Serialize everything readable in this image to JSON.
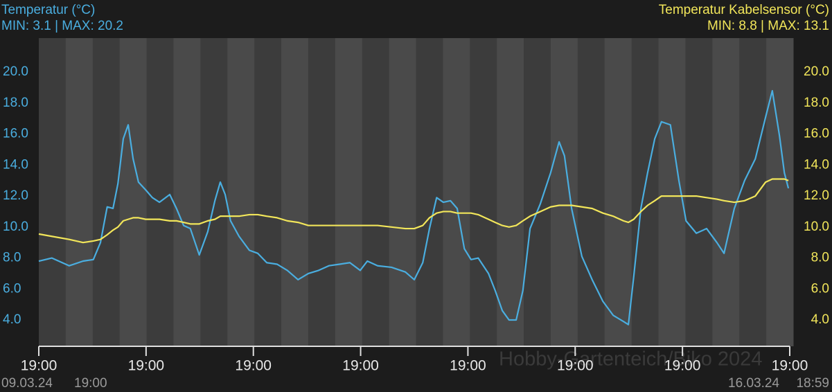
{
  "chart_data": {
    "type": "line",
    "watermark": "Hobby-Gartenteich/Biko 2024",
    "start_date": "09.03.24",
    "start_time": "19:00",
    "end_date": "16.03.24",
    "end_time": "18:59",
    "x": [
      0,
      2.9,
      6.8,
      9.9,
      12.2,
      13.8,
      15.3,
      16.6,
      17.7,
      18.9,
      20.0,
      21.1,
      22.3,
      23.9,
      25.4,
      27.0,
      29.3,
      30.8,
      32.4,
      33.9,
      35.9,
      37.8,
      39.4,
      40.6,
      41.7,
      42.9,
      44.8,
      47.1,
      49.0,
      51.0,
      53.3,
      55.6,
      58.0,
      60.3,
      62.6,
      64.9,
      67.3,
      69.6,
      71.9,
      73.5,
      75.8,
      78.9,
      82.0,
      84.0,
      85.9,
      87.4,
      89.0,
      90.5,
      92.1,
      93.6,
      95.2,
      96.7,
      98.3,
      100.6,
      102.1,
      103.7,
      105.2,
      106.8,
      108.3,
      109.9,
      112.2,
      114.5,
      116.4,
      117.6,
      119.2,
      121.5,
      123.8,
      126.2,
      128.5,
      130.8,
      131.9,
      133.1,
      134.7,
      136.2,
      137.8,
      139.3,
      141.3,
      143.2,
      144.8,
      147.1,
      149.4,
      151.7,
      153.3,
      155.6,
      157.9,
      160.3,
      162.6,
      164.1,
      165.7,
      166.8,
      167.7
    ],
    "xlim": [
      0,
      168
    ],
    "xticks": [
      {
        "value": 0,
        "label": "19:00"
      },
      {
        "value": 24,
        "label": "19:00"
      },
      {
        "value": 48,
        "label": "19:00"
      },
      {
        "value": 72,
        "label": "19:00"
      },
      {
        "value": 96,
        "label": "19:00"
      },
      {
        "value": 120,
        "label": "19:00"
      },
      {
        "value": 144,
        "label": "19:00"
      },
      {
        "value": 168,
        "label": "19:00"
      }
    ],
    "ylim": [
      2.3,
      22.2
    ],
    "yticks": [
      {
        "value": 4,
        "label": "4.0"
      },
      {
        "value": 6,
        "label": "6.0"
      },
      {
        "value": 8,
        "label": "8.0"
      },
      {
        "value": 10,
        "label": "10.0"
      },
      {
        "value": 12,
        "label": "12.0"
      },
      {
        "value": 14,
        "label": "14.0"
      },
      {
        "value": 16,
        "label": "16.0"
      },
      {
        "value": 18,
        "label": "18.0"
      },
      {
        "value": 20,
        "label": "20.0"
      }
    ],
    "y2lim": [
      2.3,
      22.2
    ],
    "y2ticks": [
      {
        "value": 4,
        "label": "4.0"
      },
      {
        "value": 6,
        "label": "6.0"
      },
      {
        "value": 8,
        "label": "8.0"
      },
      {
        "value": 10,
        "label": "10.0"
      },
      {
        "value": 12,
        "label": "12.0"
      },
      {
        "value": 14,
        "label": "14.0"
      },
      {
        "value": 16,
        "label": "16.0"
      },
      {
        "value": 18,
        "label": "18.0"
      },
      {
        "value": 20,
        "label": "20.0"
      }
    ],
    "series": [
      {
        "name": "Temperatur (°C)",
        "stats": "MIN: 3.1 | MAX: 20.2",
        "color": "#4aaee0",
        "values": [
          7.8,
          8.0,
          7.5,
          7.8,
          7.9,
          9.0,
          11.3,
          11.2,
          12.8,
          15.7,
          16.6,
          14.4,
          12.9,
          12.4,
          11.9,
          11.6,
          12.1,
          11.2,
          10.1,
          9.9,
          8.2,
          9.7,
          11.7,
          12.9,
          12.1,
          10.4,
          9.4,
          8.5,
          8.3,
          7.7,
          7.6,
          7.2,
          6.6,
          7.0,
          7.2,
          7.5,
          7.6,
          7.7,
          7.2,
          7.8,
          7.5,
          7.4,
          7.1,
          6.6,
          7.7,
          9.9,
          11.9,
          11.6,
          11.7,
          11.2,
          8.6,
          7.9,
          8.0,
          7.0,
          5.9,
          4.6,
          4.0,
          4.0,
          5.9,
          9.9,
          11.5,
          13.5,
          15.5,
          14.6,
          11.2,
          8.1,
          6.6,
          5.2,
          4.3,
          3.9,
          3.7,
          6.8,
          11.2,
          13.5,
          15.7,
          16.8,
          16.6,
          13.0,
          10.4,
          9.6,
          9.9,
          9.0,
          8.3,
          11.2,
          13.0,
          14.4,
          17.1,
          18.8,
          15.9,
          13.5,
          12.5
        ]
      },
      {
        "name": "Temperatur Kabelsensor (°C)",
        "stats": "MIN: 8.8 | MAX: 13.1",
        "color": "#f2e65a",
        "axis": "y2",
        "values": [
          9.55,
          9.4,
          9.2,
          9.0,
          9.1,
          9.2,
          9.5,
          9.8,
          10.0,
          10.4,
          10.5,
          10.6,
          10.6,
          10.5,
          10.5,
          10.5,
          10.4,
          10.4,
          10.3,
          10.2,
          10.2,
          10.4,
          10.5,
          10.7,
          10.7,
          10.7,
          10.7,
          10.8,
          10.8,
          10.7,
          10.6,
          10.4,
          10.3,
          10.1,
          10.1,
          10.1,
          10.1,
          10.1,
          10.1,
          10.1,
          10.1,
          10.0,
          9.9,
          9.9,
          10.1,
          10.6,
          10.9,
          11.0,
          11.0,
          10.9,
          10.9,
          10.9,
          10.8,
          10.5,
          10.3,
          10.1,
          10.0,
          10.1,
          10.4,
          10.7,
          11.0,
          11.3,
          11.4,
          11.4,
          11.4,
          11.3,
          11.2,
          10.9,
          10.7,
          10.4,
          10.3,
          10.5,
          11.0,
          11.4,
          11.7,
          12.0,
          12.0,
          12.0,
          12.0,
          12.0,
          11.9,
          11.8,
          11.7,
          11.6,
          11.7,
          12.0,
          12.9,
          13.1,
          13.1,
          13.1,
          13.0
        ]
      }
    ]
  }
}
